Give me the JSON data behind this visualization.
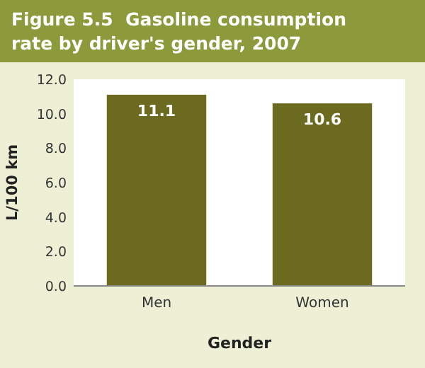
{
  "chart_data": {
    "type": "bar",
    "title": "Figure 5.5  Gasoline consumption rate by driver's gender, 2007",
    "xlabel": "Gender",
    "ylabel": "L/100 km",
    "categories": [
      "Men",
      "Women"
    ],
    "values": [
      11.1,
      10.6
    ],
    "color": "#6b6a1e",
    "data_labels": true,
    "ylim": [
      0,
      12
    ],
    "yticks": [
      {
        "value": 0,
        "label": "0.0"
      },
      {
        "value": 2,
        "label": "2.0"
      },
      {
        "value": 4,
        "label": "4.0"
      },
      {
        "value": 6,
        "label": "6.0"
      },
      {
        "value": 8,
        "label": "8.0"
      },
      {
        "value": 10,
        "label": "10.0"
      },
      {
        "value": 12,
        "label": "12.0"
      }
    ]
  }
}
